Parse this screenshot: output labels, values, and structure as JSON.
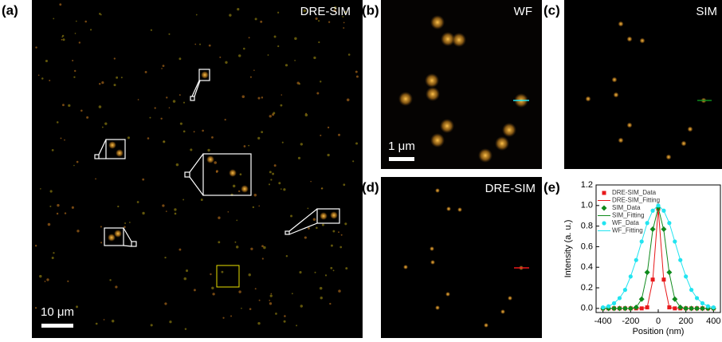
{
  "panels": [
    {
      "label": "(a)",
      "title": "DRE-SIM",
      "scale_bar": "10 μm"
    },
    {
      "label": "(b)",
      "title": "WF",
      "scale_bar": "1 μm"
    },
    {
      "label": "(c)",
      "title": "SIM"
    },
    {
      "label": "(d)",
      "title": "DRE-SIM"
    }
  ],
  "chart_data": {
    "type": "line",
    "label": "(e)",
    "x_label": "Position (nm)",
    "y_label": "Intensity (a. u.)",
    "x": [
      -400,
      -360,
      -320,
      -280,
      -240,
      -200,
      -160,
      -120,
      -80,
      -40,
      0,
      40,
      80,
      120,
      160,
      200,
      240,
      280,
      320,
      360,
      400
    ],
    "xlim": [
      -450,
      450
    ],
    "xticks": [
      -400,
      -200,
      0,
      200,
      400
    ],
    "ylim": [
      -0.04,
      1.2
    ],
    "yticks": [
      {
        "value": 0,
        "label": "0.0"
      },
      {
        "value": 0.2,
        "label": "0.2"
      },
      {
        "value": 0.4,
        "label": "0.4"
      },
      {
        "value": 0.6,
        "label": "0.6"
      },
      {
        "value": 0.8,
        "label": "0.8"
      },
      {
        "value": 1,
        "label": "1.0"
      },
      {
        "value": 1.2,
        "label": "1.2"
      }
    ],
    "series": [
      {
        "name": "DRE-SIM_Data",
        "color": "#e8191b",
        "marker": "square",
        "values": [
          0,
          0,
          0,
          0,
          0,
          0,
          0,
          0,
          0.01,
          0.28,
          0.97,
          0.28,
          0.01,
          0,
          0,
          0,
          0,
          0,
          0,
          0,
          0
        ]
      },
      {
        "name": "DRE-SIM_Fitting",
        "color": "#e8191b",
        "marker": "line",
        "values": [
          0,
          0,
          0,
          0,
          0,
          0,
          0,
          0,
          0.01,
          0.27,
          0.97,
          0.27,
          0.01,
          0,
          0,
          0,
          0,
          0,
          0,
          0,
          0
        ]
      },
      {
        "name": "SIM_Data",
        "color": "#0f8a1c",
        "marker": "diamond",
        "values": [
          0,
          0,
          0,
          0,
          0,
          0,
          0.01,
          0.09,
          0.35,
          0.77,
          0.98,
          0.77,
          0.35,
          0.09,
          0.01,
          0,
          0,
          0,
          0,
          0,
          0
        ]
      },
      {
        "name": "SIM_Fitting",
        "color": "#0f8a1c",
        "marker": "line",
        "values": [
          0,
          0,
          0,
          0,
          0,
          0,
          0.01,
          0.09,
          0.34,
          0.76,
          0.98,
          0.76,
          0.34,
          0.09,
          0.01,
          0,
          0,
          0,
          0,
          0,
          0
        ]
      },
      {
        "name": "WF_Data",
        "color": "#22e4f0",
        "marker": "circle",
        "values": [
          0.01,
          0.02,
          0.05,
          0.1,
          0.18,
          0.31,
          0.47,
          0.65,
          0.83,
          0.95,
          1.0,
          0.95,
          0.83,
          0.65,
          0.47,
          0.31,
          0.18,
          0.1,
          0.05,
          0.02,
          0.01
        ]
      },
      {
        "name": "WF_Fitting",
        "color": "#22e4f0",
        "marker": "line",
        "values": [
          0.01,
          0.02,
          0.05,
          0.1,
          0.18,
          0.31,
          0.47,
          0.65,
          0.83,
          0.95,
          1.0,
          0.95,
          0.83,
          0.65,
          0.47,
          0.31,
          0.18,
          0.1,
          0.05,
          0.02,
          0.01
        ]
      }
    ]
  }
}
